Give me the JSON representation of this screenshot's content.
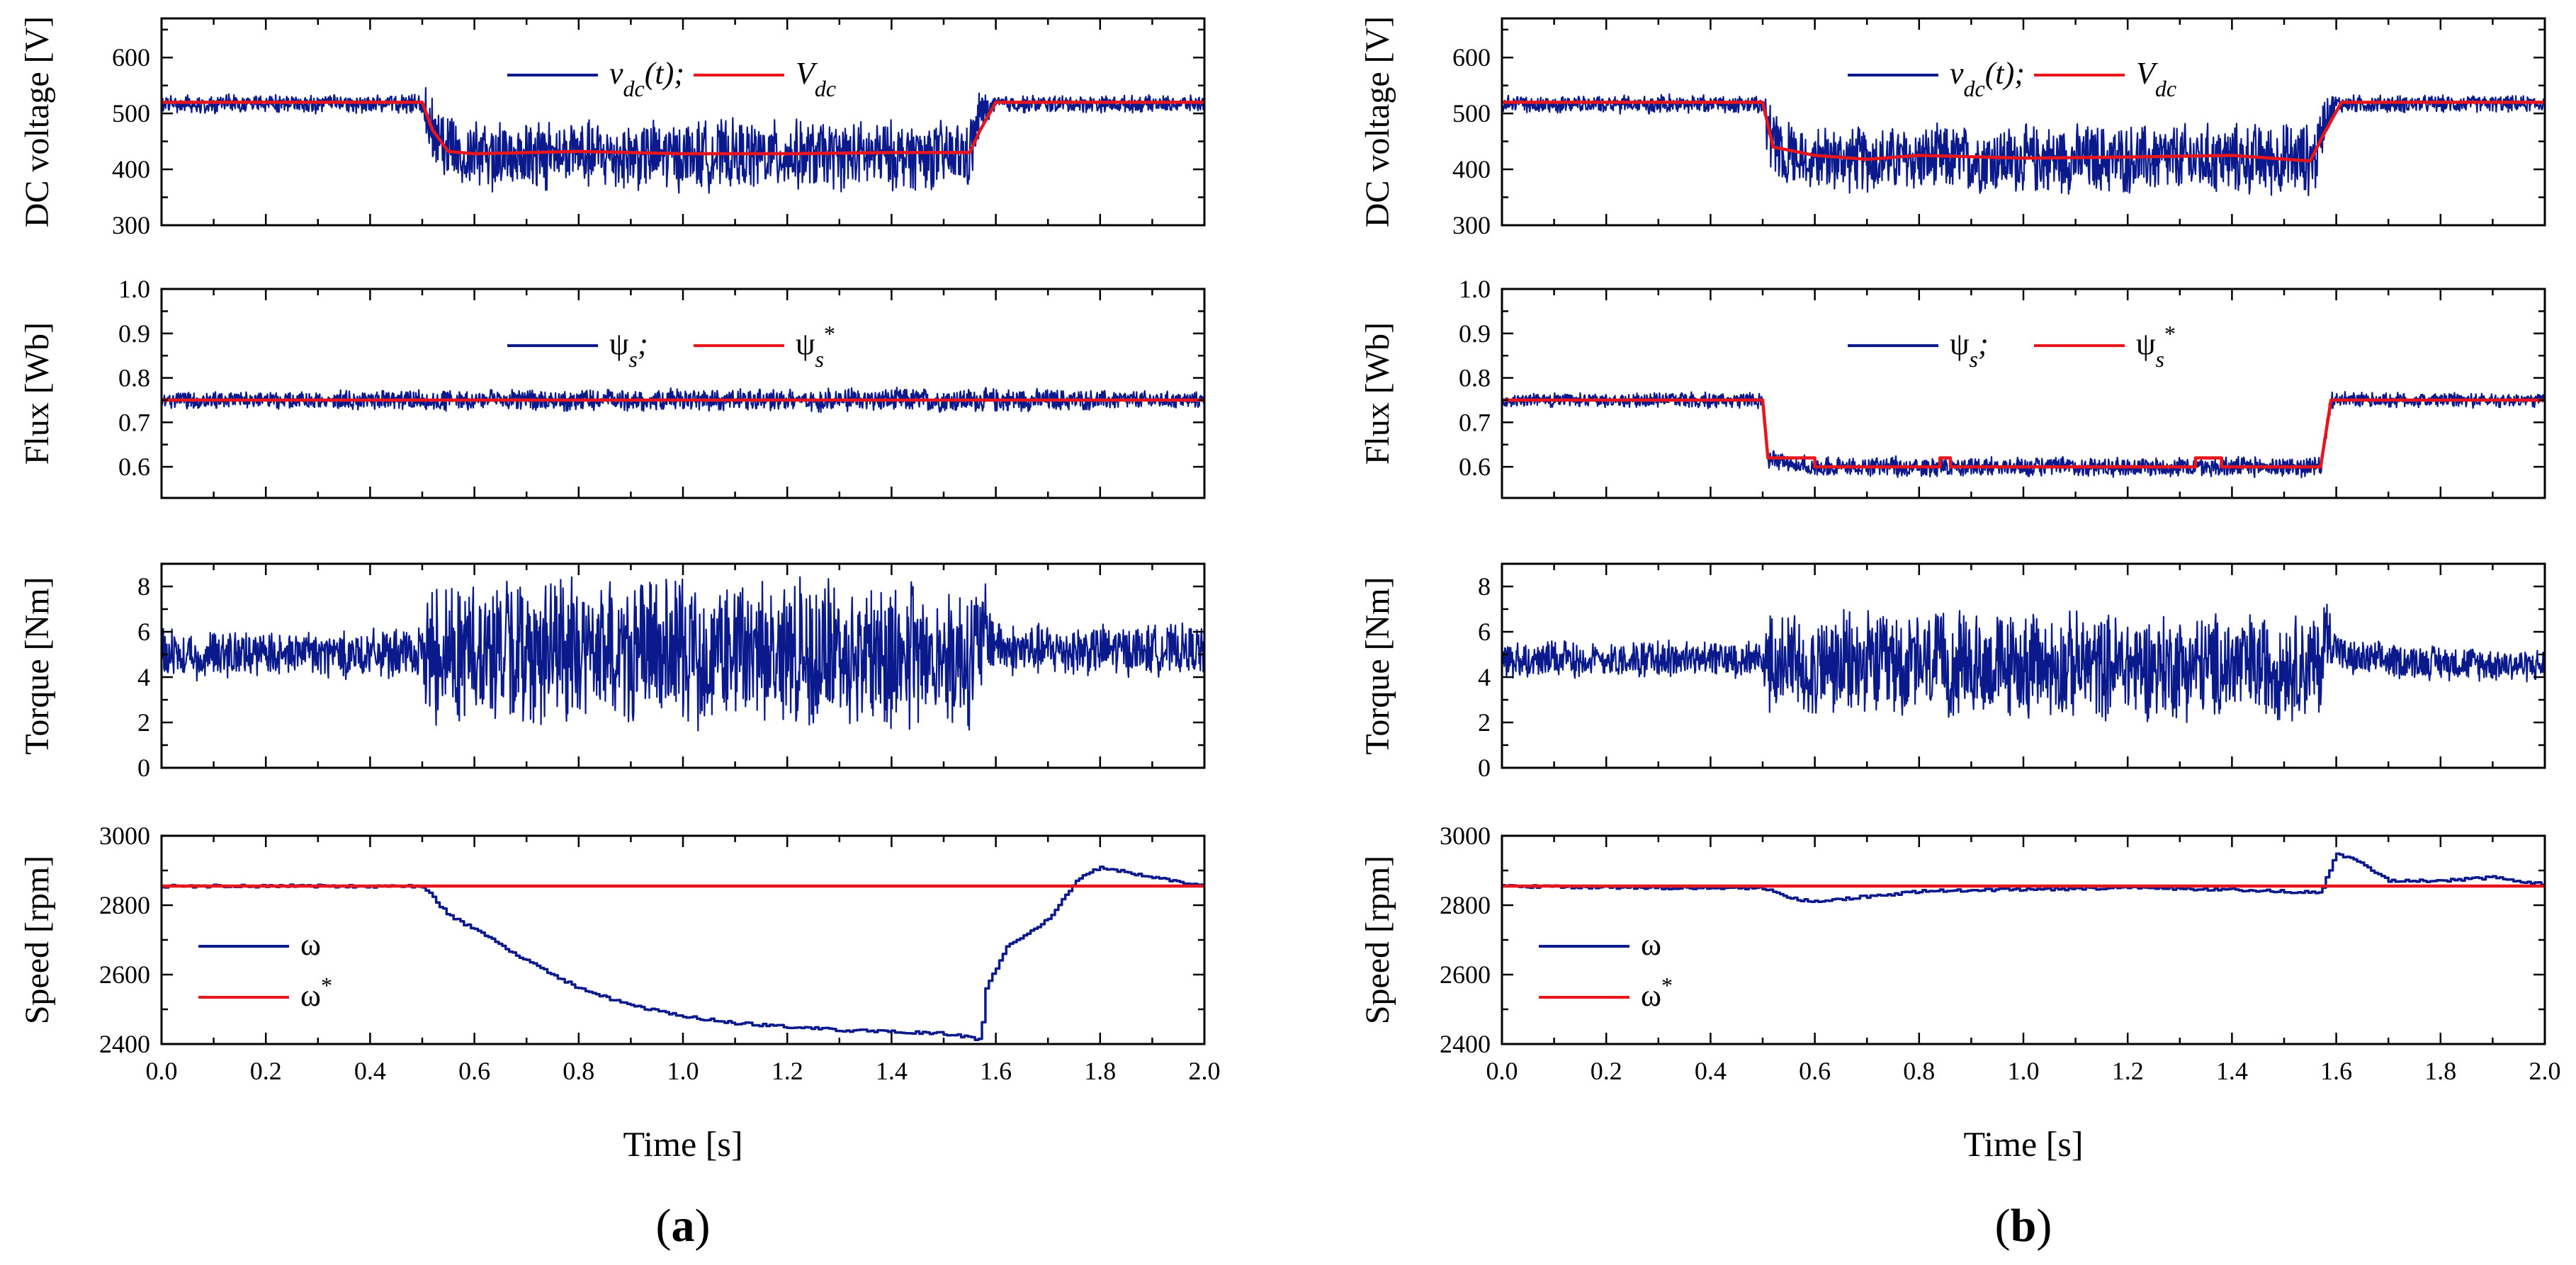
{
  "figure": {
    "panels": [
      {
        "id": "a",
        "label_prefix": "(",
        "label_letter": "a",
        "label_suffix": ")"
      },
      {
        "id": "b",
        "label_prefix": "(",
        "label_letter": "b",
        "label_suffix": ")"
      }
    ],
    "xlabel": "Time [s]",
    "xticks": [
      "0.0",
      "0.2",
      "0.4",
      "0.6",
      "0.8",
      "1.0",
      "1.2",
      "1.4",
      "1.6",
      "1.8",
      "2.0"
    ],
    "colors": {
      "measured": "#0a1a8c",
      "reference": "#e8161c",
      "axis": "#000000"
    }
  },
  "chart_data": [
    {
      "type": "line",
      "panel": "a",
      "row": "dc",
      "title": "",
      "ylabel": "DC voltage [V]",
      "xlabel": "",
      "xlim": [
        0,
        2.0
      ],
      "ylim": [
        300,
        670
      ],
      "yticks": [
        "300",
        "400",
        "500",
        "600"
      ],
      "legend": {
        "placement": "top-center",
        "entries": [
          {
            "series": "measured",
            "text": "v",
            "sub": "dc",
            "tail": "(t);"
          },
          {
            "series": "reference",
            "text": "V",
            "sub": "dc",
            "tail": ""
          }
        ]
      },
      "series": [
        {
          "name": "v_dc(t)",
          "key": "measured",
          "kind": "noisy",
          "mean": [
            [
              0,
              517
            ],
            [
              0.5,
              517
            ],
            [
              0.53,
              450
            ],
            [
              0.6,
              425
            ],
            [
              1.55,
              425
            ],
            [
              1.57,
              500
            ],
            [
              1.6,
              517
            ],
            [
              2.0,
              517
            ]
          ],
          "amp": [
            [
              0,
              18
            ],
            [
              0.5,
              18
            ],
            [
              0.51,
              70
            ],
            [
              1.56,
              68
            ],
            [
              1.59,
              18
            ],
            [
              2.0,
              16
            ]
          ]
        },
        {
          "name": "V_dc",
          "key": "reference",
          "kind": "smooth",
          "points": [
            [
              0,
              520
            ],
            [
              0.5,
              520
            ],
            [
              0.52,
              470
            ],
            [
              0.55,
              432
            ],
            [
              0.6,
              428
            ],
            [
              0.8,
              432
            ],
            [
              1.0,
              428
            ],
            [
              1.2,
              428
            ],
            [
              1.4,
              430
            ],
            [
              1.55,
              430
            ],
            [
              1.57,
              470
            ],
            [
              1.6,
              520
            ],
            [
              2.0,
              520
            ]
          ]
        }
      ]
    },
    {
      "type": "line",
      "panel": "a",
      "row": "flux",
      "title": "",
      "ylabel": "Flux [Wb]",
      "xlabel": "",
      "xlim": [
        0,
        2.0
      ],
      "ylim": [
        0.53,
        1.0
      ],
      "yticks": [
        "0.6",
        "0.7",
        "0.8",
        "0.9",
        "1.0"
      ],
      "legend": {
        "placement": "top-center",
        "entries": [
          {
            "series": "measured",
            "text": "ψ",
            "sub": "s",
            "tail": ";"
          },
          {
            "series": "reference",
            "text": "ψ",
            "sub": "s",
            "sup": "*",
            "tail": ""
          }
        ]
      },
      "series": [
        {
          "name": "ψs",
          "key": "measured",
          "kind": "noisy",
          "mean": [
            [
              0,
              0.75
            ],
            [
              2.0,
              0.75
            ]
          ],
          "amp": [
            [
              0,
              0.02
            ],
            [
              0.5,
              0.025
            ],
            [
              1.5,
              0.03
            ],
            [
              1.6,
              0.03
            ],
            [
              2.0,
              0.02
            ]
          ]
        },
        {
          "name": "ψs*",
          "key": "reference",
          "kind": "smooth",
          "points": [
            [
              0,
              0.75
            ],
            [
              2.0,
              0.75
            ]
          ]
        }
      ]
    },
    {
      "type": "line",
      "panel": "a",
      "row": "torque",
      "title": "",
      "ylabel": "Torque [Nm]",
      "xlabel": "",
      "xlim": [
        0,
        2.0
      ],
      "ylim": [
        0,
        9
      ],
      "yticks": [
        "0",
        "2",
        "4",
        "6",
        "8"
      ],
      "legend": null,
      "series": [
        {
          "name": "Te",
          "key": "measured",
          "kind": "noisy",
          "mean": [
            [
              0,
              5
            ],
            [
              0.5,
              5
            ],
            [
              0.51,
              5.2
            ],
            [
              1.56,
              5
            ],
            [
              1.58,
              6
            ],
            [
              1.62,
              5.2
            ],
            [
              2.0,
              5.2
            ]
          ],
          "amp": [
            [
              0,
              1.2
            ],
            [
              0.5,
              1.2
            ],
            [
              0.51,
              3.6
            ],
            [
              1.56,
              3.6
            ],
            [
              1.6,
              1.3
            ],
            [
              2.0,
              1.2
            ]
          ]
        }
      ]
    },
    {
      "type": "line",
      "panel": "a",
      "row": "speed",
      "title": "",
      "ylabel": "Speed [rpm]",
      "xlabel": "",
      "xlim": [
        0,
        2.0
      ],
      "ylim": [
        2400,
        3000
      ],
      "yticks": [
        "2400",
        "2600",
        "2800",
        "3000"
      ],
      "legend": {
        "placement": "left",
        "entries": [
          {
            "series": "measured",
            "text": "ω",
            "tail": ""
          },
          {
            "series": "reference",
            "text": "ω",
            "sup": "*",
            "tail": ""
          }
        ]
      },
      "series": [
        {
          "name": "ω",
          "key": "measured",
          "kind": "step",
          "points": [
            [
              0,
              2855
            ],
            [
              0.5,
              2855
            ],
            [
              0.55,
              2770
            ],
            [
              0.6,
              2730
            ],
            [
              0.7,
              2640
            ],
            [
              0.8,
              2560
            ],
            [
              0.9,
              2510
            ],
            [
              1.0,
              2480
            ],
            [
              1.1,
              2460
            ],
            [
              1.2,
              2450
            ],
            [
              1.3,
              2440
            ],
            [
              1.4,
              2435
            ],
            [
              1.5,
              2430
            ],
            [
              1.55,
              2420
            ],
            [
              1.57,
              2410
            ],
            [
              1.58,
              2560
            ],
            [
              1.62,
              2680
            ],
            [
              1.7,
              2760
            ],
            [
              1.76,
              2880
            ],
            [
              1.8,
              2910
            ],
            [
              1.9,
              2880
            ],
            [
              1.98,
              2860
            ],
            [
              2.0,
              2855
            ]
          ]
        },
        {
          "name": "ω*",
          "key": "reference",
          "kind": "smooth",
          "points": [
            [
              0,
              2855
            ],
            [
              2.0,
              2855
            ]
          ]
        }
      ]
    },
    {
      "type": "line",
      "panel": "b",
      "row": "dc",
      "title": "",
      "ylabel": "DC voltage [V]",
      "xlabel": "",
      "xlim": [
        0,
        2.0
      ],
      "ylim": [
        300,
        670
      ],
      "yticks": [
        "300",
        "400",
        "500",
        "600"
      ],
      "legend": {
        "placement": "top-center",
        "entries": [
          {
            "series": "measured",
            "text": "v",
            "sub": "dc",
            "tail": "(t);"
          },
          {
            "series": "reference",
            "text": "V",
            "sub": "dc",
            "tail": ""
          }
        ]
      },
      "series": [
        {
          "name": "v_dc(t)",
          "key": "measured",
          "kind": "noisy",
          "mean": [
            [
              0,
              517
            ],
            [
              0.5,
              517
            ],
            [
              0.52,
              440
            ],
            [
              0.6,
              418
            ],
            [
              1.56,
              418
            ],
            [
              1.58,
              500
            ],
            [
              1.6,
              517
            ],
            [
              2.0,
              517
            ]
          ],
          "amp": [
            [
              0,
              18
            ],
            [
              0.5,
              18
            ],
            [
              0.51,
              65
            ],
            [
              1.56,
              72
            ],
            [
              1.6,
              18
            ],
            [
              2.0,
              16
            ]
          ]
        },
        {
          "name": "V_dc",
          "key": "reference",
          "kind": "smooth",
          "points": [
            [
              0,
              520
            ],
            [
              0.5,
              520
            ],
            [
              0.52,
              440
            ],
            [
              0.6,
              425
            ],
            [
              0.7,
              418
            ],
            [
              0.8,
              425
            ],
            [
              1.0,
              420
            ],
            [
              1.2,
              422
            ],
            [
              1.4,
              425
            ],
            [
              1.55,
              415
            ],
            [
              1.58,
              470
            ],
            [
              1.61,
              520
            ],
            [
              2.0,
              520
            ]
          ]
        }
      ]
    },
    {
      "type": "line",
      "panel": "b",
      "row": "flux",
      "title": "",
      "ylabel": "Flux [Wb]",
      "xlabel": "",
      "xlim": [
        0,
        2.0
      ],
      "ylim": [
        0.53,
        1.0
      ],
      "yticks": [
        "0.6",
        "0.7",
        "0.8",
        "0.9",
        "1.0"
      ],
      "legend": {
        "placement": "top-center",
        "entries": [
          {
            "series": "measured",
            "text": "ψ",
            "sub": "s",
            "tail": ";"
          },
          {
            "series": "reference",
            "text": "ψ",
            "sub": "s",
            "sup": "*",
            "tail": ""
          }
        ]
      },
      "series": [
        {
          "name": "ψs",
          "key": "measured",
          "kind": "noisy",
          "mean": [
            [
              0,
              0.75
            ],
            [
              0.5,
              0.75
            ],
            [
              0.51,
              0.62
            ],
            [
              0.6,
              0.6
            ],
            [
              1.57,
              0.6
            ],
            [
              1.59,
              0.75
            ],
            [
              2.0,
              0.75
            ]
          ],
          "amp": [
            [
              0,
              0.018
            ],
            [
              0.5,
              0.02
            ],
            [
              0.51,
              0.025
            ],
            [
              1.58,
              0.025
            ],
            [
              1.6,
              0.02
            ],
            [
              2.0,
              0.018
            ]
          ]
        },
        {
          "name": "ψs*",
          "key": "reference",
          "kind": "smooth",
          "points": [
            [
              0,
              0.75
            ],
            [
              0.5,
              0.75
            ],
            [
              0.51,
              0.62
            ],
            [
              0.6,
              0.62
            ],
            [
              0.6,
              0.6
            ],
            [
              0.84,
              0.6
            ],
            [
              0.84,
              0.62
            ],
            [
              0.86,
              0.62
            ],
            [
              0.86,
              0.6
            ],
            [
              1.33,
              0.6
            ],
            [
              1.33,
              0.62
            ],
            [
              1.38,
              0.62
            ],
            [
              1.38,
              0.6
            ],
            [
              1.57,
              0.6
            ],
            [
              1.59,
              0.75
            ],
            [
              2.0,
              0.75
            ]
          ]
        }
      ]
    },
    {
      "type": "line",
      "panel": "b",
      "row": "torque",
      "title": "",
      "ylabel": "Torque [Nm]",
      "xlabel": "",
      "xlim": [
        0,
        2.0
      ],
      "ylim": [
        0,
        9
      ],
      "yticks": [
        "0",
        "2",
        "4",
        "6",
        "8"
      ],
      "legend": null,
      "series": [
        {
          "name": "Te",
          "key": "measured",
          "kind": "noisy",
          "mean": [
            [
              0,
              4.8
            ],
            [
              0.5,
              4.8
            ],
            [
              0.51,
              4.5
            ],
            [
              1.57,
              4.5
            ],
            [
              1.58,
              6
            ],
            [
              1.62,
              4.8
            ],
            [
              2.0,
              4.5
            ]
          ],
          "amp": [
            [
              0,
              0.9
            ],
            [
              0.5,
              0.9
            ],
            [
              0.51,
              2.6
            ],
            [
              1.57,
              2.6
            ],
            [
              1.6,
              0.9
            ],
            [
              2.0,
              0.8
            ]
          ]
        }
      ]
    },
    {
      "type": "line",
      "panel": "b",
      "row": "speed",
      "title": "",
      "ylabel": "Speed [rpm]",
      "xlabel": "",
      "xlim": [
        0,
        2.0
      ],
      "ylim": [
        2400,
        3000
      ],
      "yticks": [
        "2400",
        "2600",
        "2800",
        "3000"
      ],
      "legend": {
        "placement": "left",
        "entries": [
          {
            "series": "measured",
            "text": "ω",
            "tail": ""
          },
          {
            "series": "reference",
            "text": "ω",
            "sup": "*",
            "tail": ""
          }
        ]
      },
      "series": [
        {
          "name": "ω",
          "key": "measured",
          "kind": "step",
          "points": [
            [
              0,
              2855
            ],
            [
              0.3,
              2850
            ],
            [
              0.5,
              2850
            ],
            [
              0.55,
              2820
            ],
            [
              0.6,
              2810
            ],
            [
              0.7,
              2825
            ],
            [
              0.8,
              2840
            ],
            [
              1.0,
              2845
            ],
            [
              1.2,
              2850
            ],
            [
              1.4,
              2845
            ],
            [
              1.5,
              2840
            ],
            [
              1.57,
              2835
            ],
            [
              1.58,
              2880
            ],
            [
              1.6,
              2950
            ],
            [
              1.65,
              2920
            ],
            [
              1.7,
              2870
            ],
            [
              1.8,
              2870
            ],
            [
              1.9,
              2880
            ],
            [
              2.0,
              2860
            ]
          ]
        },
        {
          "name": "ω*",
          "key": "reference",
          "kind": "smooth",
          "points": [
            [
              0,
              2855
            ],
            [
              2.0,
              2855
            ]
          ]
        }
      ]
    }
  ]
}
